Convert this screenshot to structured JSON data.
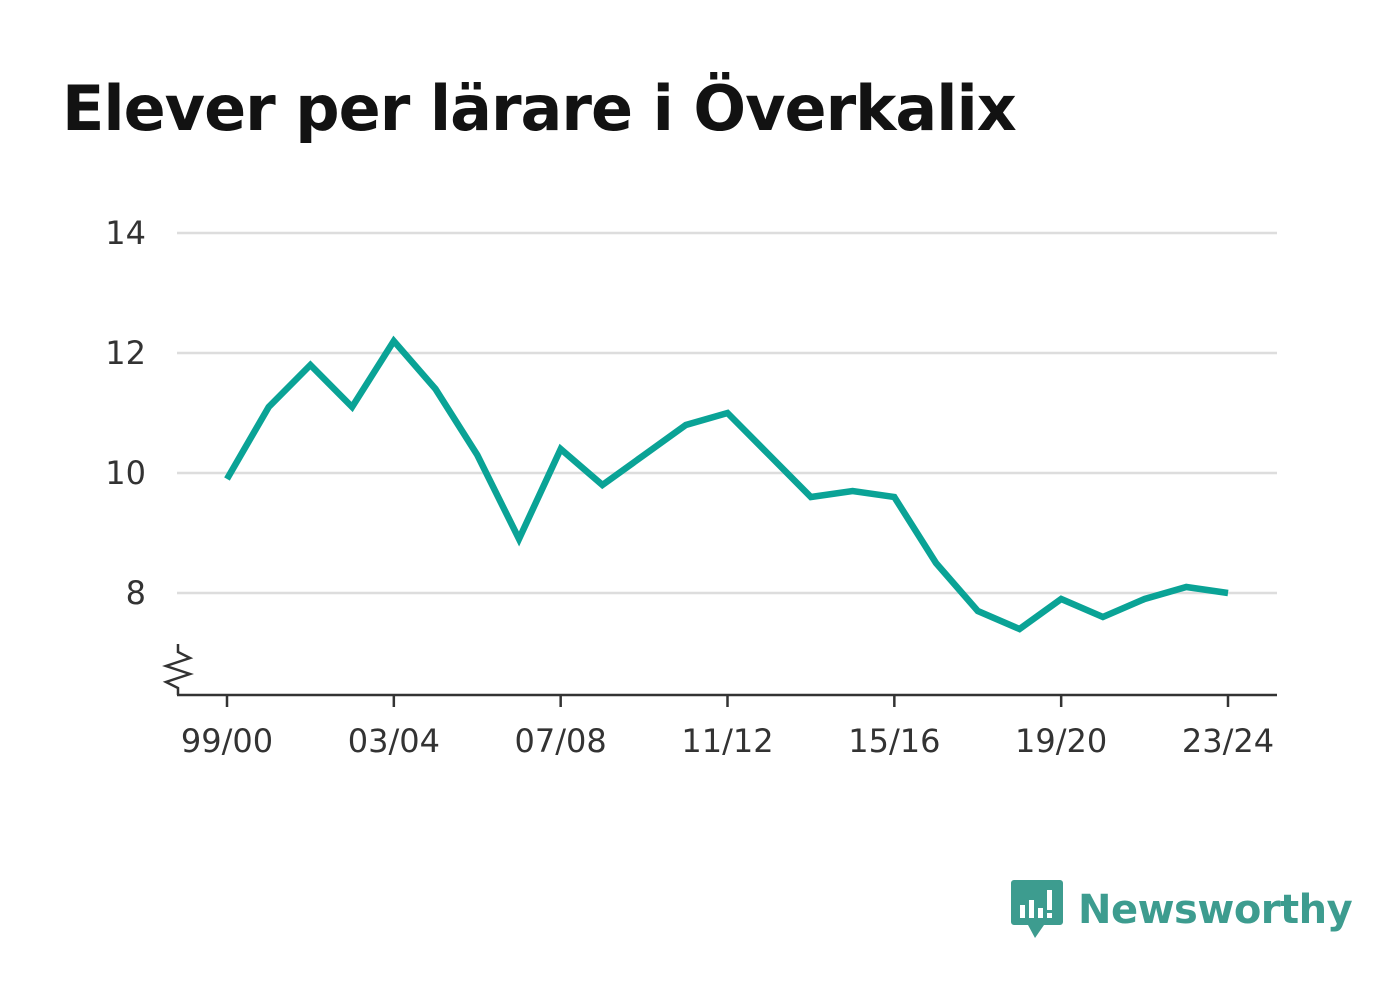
{
  "title": "Elever per lärare i Överkalix",
  "brand": {
    "name": "Newsworthy",
    "icon": "newsworthy-logo-icon",
    "color": "#3d9c8f"
  },
  "colors": {
    "line": "#0aa396",
    "grid": "#dddddd",
    "axis": "#333333",
    "text": "#333333"
  },
  "chart_data": {
    "type": "line",
    "title": "Elever per lärare i Överkalix",
    "xlabel": "",
    "ylabel": "",
    "categories": [
      "99/00",
      "00/01",
      "01/02",
      "02/03",
      "03/04",
      "04/05",
      "05/06",
      "06/07",
      "07/08",
      "08/09",
      "09/10",
      "10/11",
      "11/12",
      "12/13",
      "13/14",
      "14/15",
      "15/16",
      "16/17",
      "17/18",
      "18/19",
      "19/20",
      "20/21",
      "21/22",
      "22/23",
      "23/24"
    ],
    "values": [
      9.9,
      11.1,
      11.8,
      11.1,
      12.2,
      11.4,
      10.3,
      8.9,
      10.4,
      9.8,
      10.3,
      10.8,
      11.0,
      10.3,
      9.6,
      9.7,
      9.6,
      8.5,
      7.7,
      7.4,
      7.9,
      7.6,
      7.9,
      8.1,
      8.0
    ],
    "x_tick_labels": [
      "99/00",
      "03/04",
      "07/08",
      "11/12",
      "15/16",
      "19/20",
      "23/24"
    ],
    "y_ticks": [
      8,
      10,
      12,
      14
    ],
    "y_tick_labels": [
      "8",
      "10",
      "12",
      "14"
    ],
    "ylim": [
      6.3,
      14
    ],
    "y_axis_break": true,
    "grid": true,
    "legend": "none"
  }
}
